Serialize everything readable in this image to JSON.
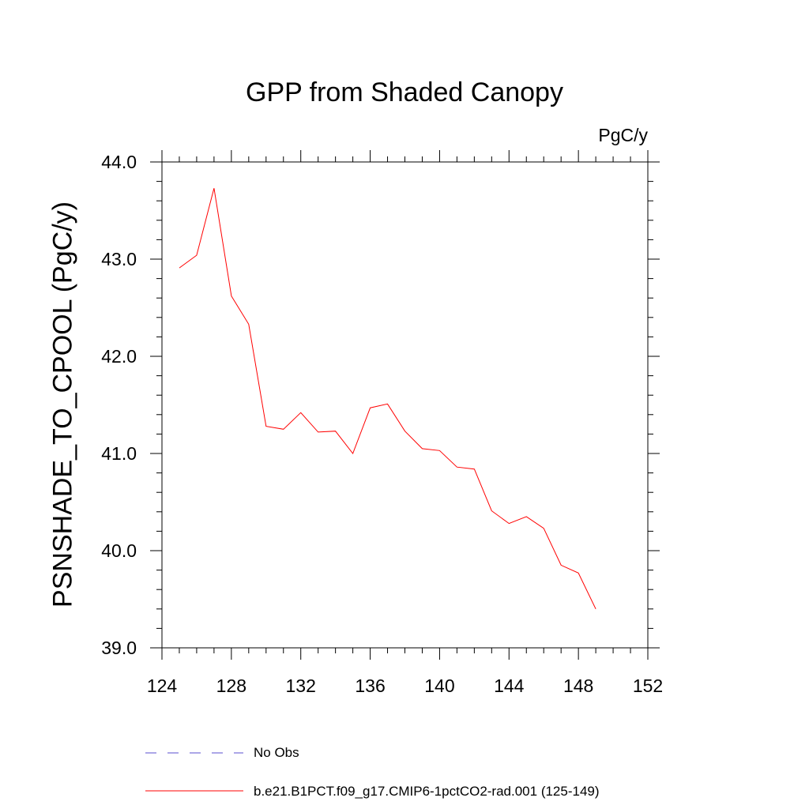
{
  "chart_data": {
    "type": "line",
    "title": "GPP from Shaded Canopy",
    "units": "PgC/y",
    "ylabel": "PSNSHADE_TO_CPOOL  (PgC/y)",
    "xlabel": "",
    "xlim": [
      124,
      152
    ],
    "ylim": [
      39.0,
      44.0
    ],
    "xticks": [
      124,
      128,
      132,
      136,
      140,
      144,
      148,
      152
    ],
    "yticks": [
      "39.0",
      "40.0",
      "41.0",
      "42.0",
      "43.0",
      "44.0"
    ],
    "grid": false,
    "series": [
      {
        "name": "b.e21.B1PCT.f09_g17.CMIP6-1pctCO2-rad.001 (125-149)",
        "color": "#ff0000",
        "x": [
          125,
          126,
          127,
          128,
          129,
          130,
          131,
          132,
          133,
          134,
          135,
          136,
          137,
          138,
          139,
          140,
          141,
          142,
          143,
          144,
          145,
          146,
          147,
          148,
          149
        ],
        "values": [
          42.91,
          43.04,
          43.73,
          42.62,
          42.33,
          41.28,
          41.25,
          41.42,
          41.22,
          41.23,
          41.0,
          41.47,
          41.51,
          41.23,
          41.05,
          41.03,
          40.86,
          40.84,
          40.41,
          40.28,
          40.35,
          40.23,
          39.85,
          39.77,
          39.4
        ]
      }
    ],
    "legend": {
      "placement": "bottom",
      "entries": [
        {
          "label": "No Obs",
          "color": "#5a4fcf",
          "style": "dashed"
        },
        {
          "label": "b.e21.B1PCT.f09_g17.CMIP6-1pctCO2-rad.001 (125-149)",
          "color": "#ff0000",
          "style": "solid"
        }
      ]
    }
  }
}
